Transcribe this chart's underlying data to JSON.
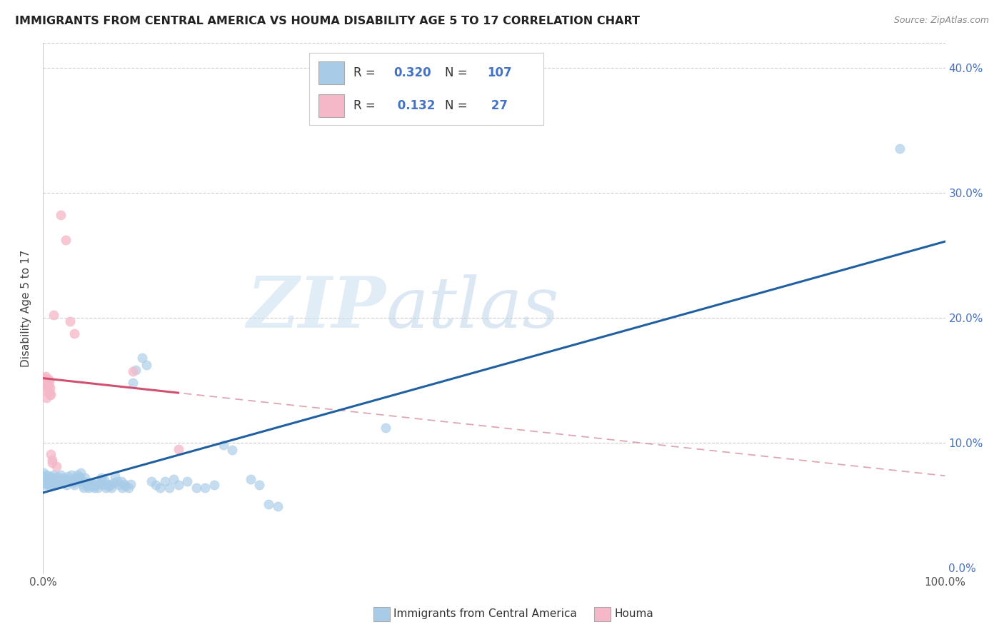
{
  "title": "IMMIGRANTS FROM CENTRAL AMERICA VS HOUMA DISABILITY AGE 5 TO 17 CORRELATION CHART",
  "source": "Source: ZipAtlas.com",
  "ylabel": "Disability Age 5 to 17",
  "legend1_R": "0.320",
  "legend1_N": "107",
  "legend2_R": "0.132",
  "legend2_N": "27",
  "watermark_zip": "ZIP",
  "watermark_atlas": "atlas",
  "blue_color": "#a8cce8",
  "blue_dark": "#2060a0",
  "pink_color": "#f5b8c8",
  "pink_dark": "#d05070",
  "pink_dashed": "#e08090",
  "blue_scatter": [
    [
      0.001,
      0.076
    ],
    [
      0.002,
      0.072
    ],
    [
      0.002,
      0.069
    ],
    [
      0.003,
      0.073
    ],
    [
      0.003,
      0.066
    ],
    [
      0.004,
      0.074
    ],
    [
      0.004,
      0.069
    ],
    [
      0.005,
      0.071
    ],
    [
      0.005,
      0.067
    ],
    [
      0.006,
      0.072
    ],
    [
      0.006,
      0.068
    ],
    [
      0.007,
      0.07
    ],
    [
      0.007,
      0.066
    ],
    [
      0.008,
      0.073
    ],
    [
      0.008,
      0.069
    ],
    [
      0.009,
      0.071
    ],
    [
      0.009,
      0.065
    ],
    [
      0.01,
      0.072
    ],
    [
      0.01,
      0.068
    ],
    [
      0.011,
      0.07
    ],
    [
      0.012,
      0.074
    ],
    [
      0.012,
      0.067
    ],
    [
      0.013,
      0.069
    ],
    [
      0.013,
      0.066
    ],
    [
      0.014,
      0.071
    ],
    [
      0.015,
      0.068
    ],
    [
      0.016,
      0.073
    ],
    [
      0.017,
      0.069
    ],
    [
      0.018,
      0.067
    ],
    [
      0.019,
      0.071
    ],
    [
      0.02,
      0.074
    ],
    [
      0.022,
      0.069
    ],
    [
      0.023,
      0.072
    ],
    [
      0.025,
      0.07
    ],
    [
      0.026,
      0.066
    ],
    [
      0.027,
      0.071
    ],
    [
      0.028,
      0.073
    ],
    [
      0.03,
      0.069
    ],
    [
      0.032,
      0.074
    ],
    [
      0.033,
      0.068
    ],
    [
      0.034,
      0.07
    ],
    [
      0.035,
      0.066
    ],
    [
      0.036,
      0.072
    ],
    [
      0.037,
      0.069
    ],
    [
      0.038,
      0.074
    ],
    [
      0.04,
      0.073
    ],
    [
      0.041,
      0.07
    ],
    [
      0.042,
      0.076
    ],
    [
      0.043,
      0.069
    ],
    [
      0.044,
      0.066
    ],
    [
      0.045,
      0.064
    ],
    [
      0.046,
      0.069
    ],
    [
      0.047,
      0.072
    ],
    [
      0.048,
      0.067
    ],
    [
      0.05,
      0.065
    ],
    [
      0.051,
      0.064
    ],
    [
      0.052,
      0.066
    ],
    [
      0.053,
      0.068
    ],
    [
      0.055,
      0.065
    ],
    [
      0.056,
      0.067
    ],
    [
      0.057,
      0.064
    ],
    [
      0.058,
      0.066
    ],
    [
      0.06,
      0.069
    ],
    [
      0.061,
      0.064
    ],
    [
      0.063,
      0.067
    ],
    [
      0.065,
      0.072
    ],
    [
      0.066,
      0.069
    ],
    [
      0.067,
      0.066
    ],
    [
      0.068,
      0.07
    ],
    [
      0.07,
      0.064
    ],
    [
      0.072,
      0.067
    ],
    [
      0.073,
      0.065
    ],
    [
      0.075,
      0.066
    ],
    [
      0.076,
      0.064
    ],
    [
      0.078,
      0.068
    ],
    [
      0.08,
      0.073
    ],
    [
      0.082,
      0.069
    ],
    [
      0.085,
      0.066
    ],
    [
      0.087,
      0.069
    ],
    [
      0.088,
      0.064
    ],
    [
      0.09,
      0.067
    ],
    [
      0.092,
      0.065
    ],
    [
      0.095,
      0.064
    ],
    [
      0.097,
      0.067
    ],
    [
      0.1,
      0.148
    ],
    [
      0.103,
      0.158
    ],
    [
      0.11,
      0.168
    ],
    [
      0.115,
      0.162
    ],
    [
      0.12,
      0.069
    ],
    [
      0.125,
      0.066
    ],
    [
      0.13,
      0.064
    ],
    [
      0.135,
      0.069
    ],
    [
      0.14,
      0.064
    ],
    [
      0.145,
      0.071
    ],
    [
      0.15,
      0.066
    ],
    [
      0.16,
      0.069
    ],
    [
      0.17,
      0.064
    ],
    [
      0.18,
      0.064
    ],
    [
      0.19,
      0.066
    ],
    [
      0.2,
      0.098
    ],
    [
      0.21,
      0.094
    ],
    [
      0.23,
      0.071
    ],
    [
      0.24,
      0.066
    ],
    [
      0.25,
      0.051
    ],
    [
      0.26,
      0.049
    ],
    [
      0.38,
      0.112
    ],
    [
      0.95,
      0.335
    ]
  ],
  "pink_scatter": [
    [
      0.001,
      0.152
    ],
    [
      0.002,
      0.151
    ],
    [
      0.002,
      0.149
    ],
    [
      0.003,
      0.153
    ],
    [
      0.003,
      0.146
    ],
    [
      0.004,
      0.141
    ],
    [
      0.004,
      0.136
    ],
    [
      0.005,
      0.149
    ],
    [
      0.005,
      0.144
    ],
    [
      0.006,
      0.151
    ],
    [
      0.006,
      0.146
    ],
    [
      0.007,
      0.149
    ],
    [
      0.007,
      0.141
    ],
    [
      0.008,
      0.144
    ],
    [
      0.008,
      0.138
    ],
    [
      0.009,
      0.139
    ],
    [
      0.009,
      0.091
    ],
    [
      0.01,
      0.086
    ],
    [
      0.01,
      0.084
    ],
    [
      0.012,
      0.202
    ],
    [
      0.015,
      0.081
    ],
    [
      0.02,
      0.282
    ],
    [
      0.025,
      0.262
    ],
    [
      0.03,
      0.197
    ],
    [
      0.035,
      0.187
    ],
    [
      0.1,
      0.157
    ],
    [
      0.15,
      0.095
    ]
  ],
  "ylim_min": -0.005,
  "ylim_max": 0.42,
  "xlim_min": 0.0,
  "xlim_max": 1.0
}
